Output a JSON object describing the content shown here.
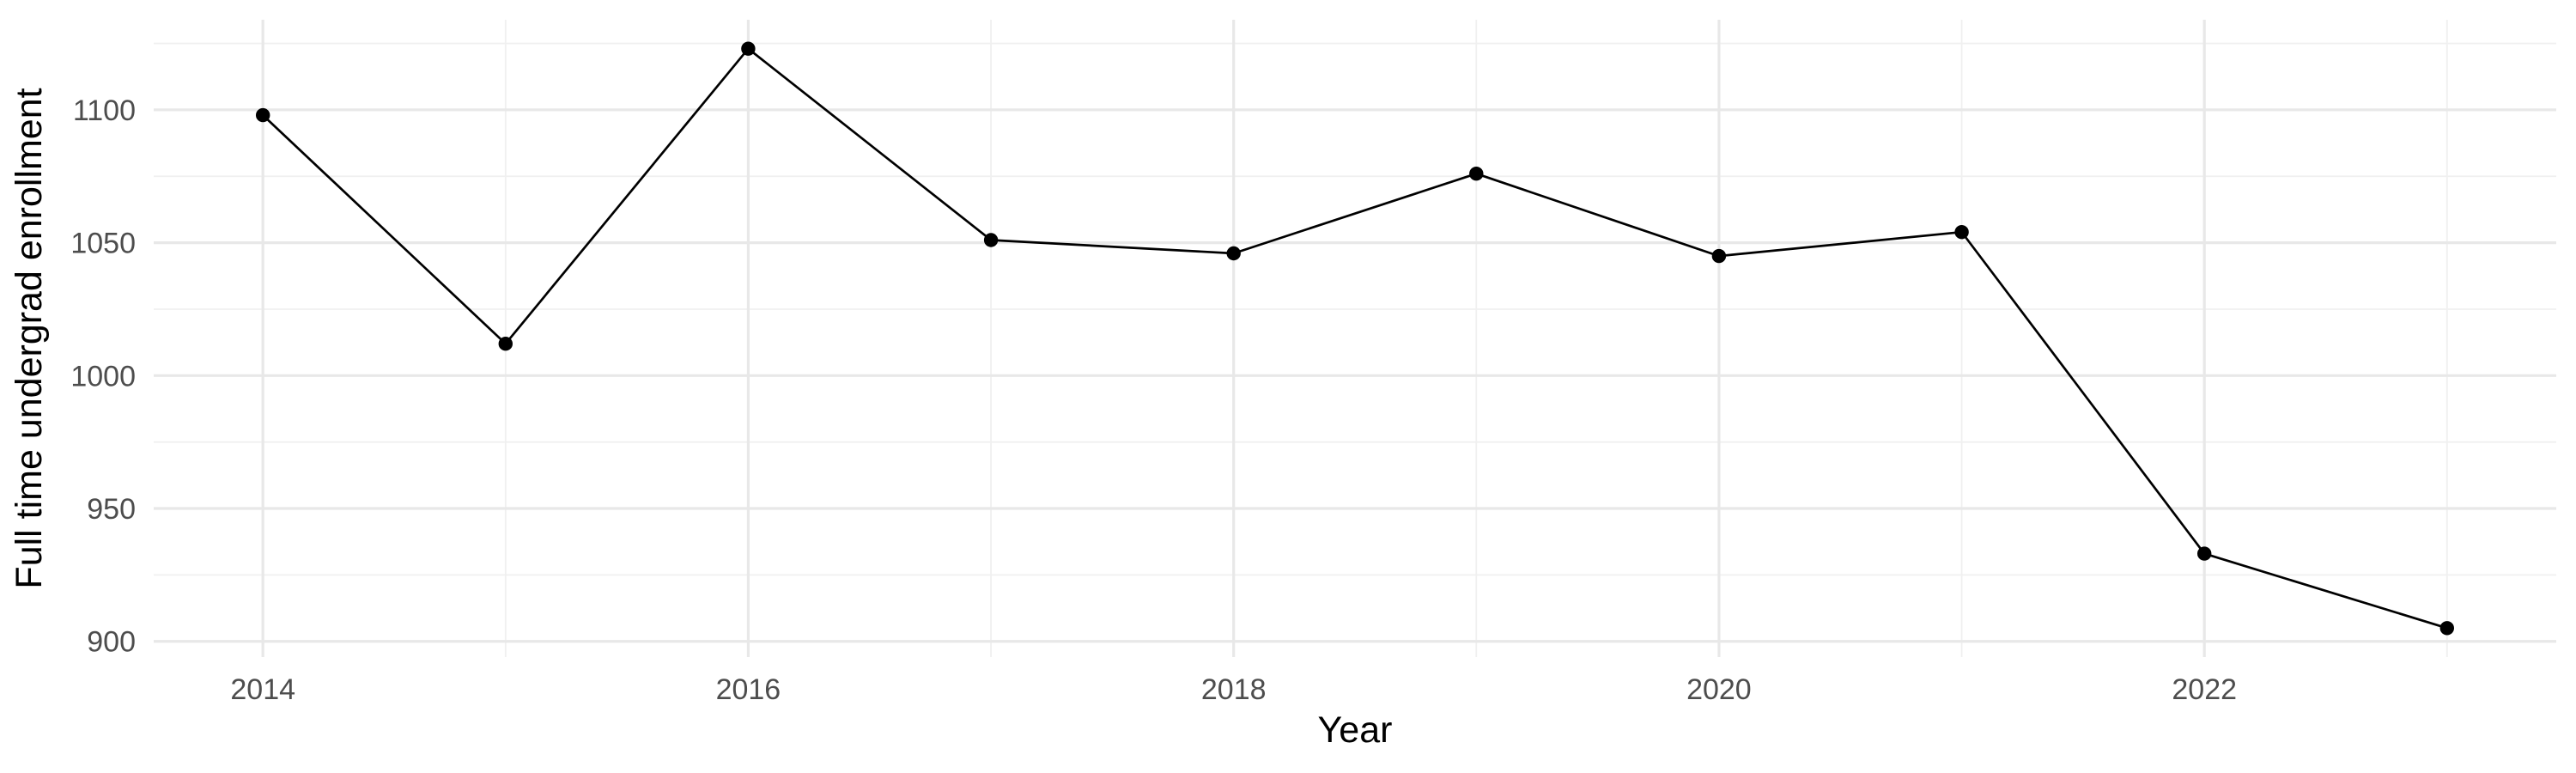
{
  "chart_data": {
    "type": "line",
    "title": "",
    "xlabel": "Year",
    "ylabel": "Full time undergrad enrollment",
    "x": [
      2014,
      2015,
      2016,
      2017,
      2018,
      2019,
      2020,
      2021,
      2022,
      2023
    ],
    "y": [
      1098,
      1012,
      1123,
      1051,
      1046,
      1076,
      1045,
      1054,
      933,
      905
    ],
    "series_name": "Full time undergrad enrollment",
    "x_tick_labels": [
      "2014",
      "2016",
      "2018",
      "2020",
      "2022"
    ],
    "x_ticks": [
      2014,
      2016,
      2018,
      2020,
      2022
    ],
    "y_tick_labels": [
      "900",
      "950",
      "1000",
      "1050",
      "1100"
    ],
    "y_ticks": [
      900,
      950,
      1000,
      1050,
      1100
    ],
    "x_minor_gridlines": [
      2015,
      2017,
      2019,
      2021,
      2023
    ],
    "y_minor_gridlines": [
      925,
      975,
      1025,
      1075,
      1125
    ],
    "xlim": [
      2013.55,
      2023.45
    ],
    "ylim": [
      894.1,
      1133.9
    ],
    "grid": "major-and-minor",
    "legend": "none",
    "marker": "filled-circle",
    "colors": {
      "line": "#000000",
      "point": "#000000",
      "grid_major": "#E8E8E8",
      "grid_minor": "#F0F0F0",
      "tick_text": "#4D4D4D",
      "axis_title_text": "#000000",
      "background": "#FFFFFF"
    }
  }
}
